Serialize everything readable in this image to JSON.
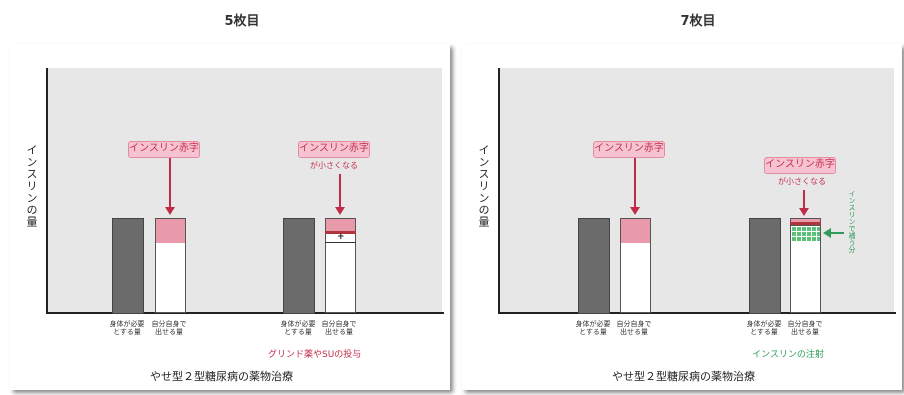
{
  "slides": [
    {
      "title": "5枚目",
      "ylabel": "インスリンの量",
      "caption": "やせ型２型糖尿病の薬物治療",
      "groups": [
        {
          "tag": "インスリン赤字",
          "subtag": "",
          "label_left": "身体が必要とする量",
          "label_right": "自分自身で出せる量",
          "note": ""
        },
        {
          "tag": "インスリン赤字",
          "subtag": "が小さくなる",
          "label_left": "身体が必要とする量",
          "label_right": "自分自身で出せる量",
          "note": "グリンド薬やSUの投与"
        }
      ]
    },
    {
      "title": "7枚目",
      "ylabel": "インスリンの量",
      "caption": "やせ型２型糖尿病の薬物治療",
      "groups": [
        {
          "tag": "インスリン赤字",
          "subtag": "",
          "label_left": "身体が必要とする量",
          "label_right": "自分自身で出せる量",
          "note": ""
        },
        {
          "tag": "インスリン赤字",
          "subtag": "が小さくなる",
          "label_left": "身体が必要とする量",
          "label_right": "自分自身で出せる量",
          "note": "インスリンの注射",
          "side_note": "インスリンで補う分"
        }
      ]
    }
  ],
  "colors": {
    "pink": "#e99aaa",
    "red": "#c02c47",
    "gray": "#6b6b6b",
    "green": "#2e9b5a"
  }
}
